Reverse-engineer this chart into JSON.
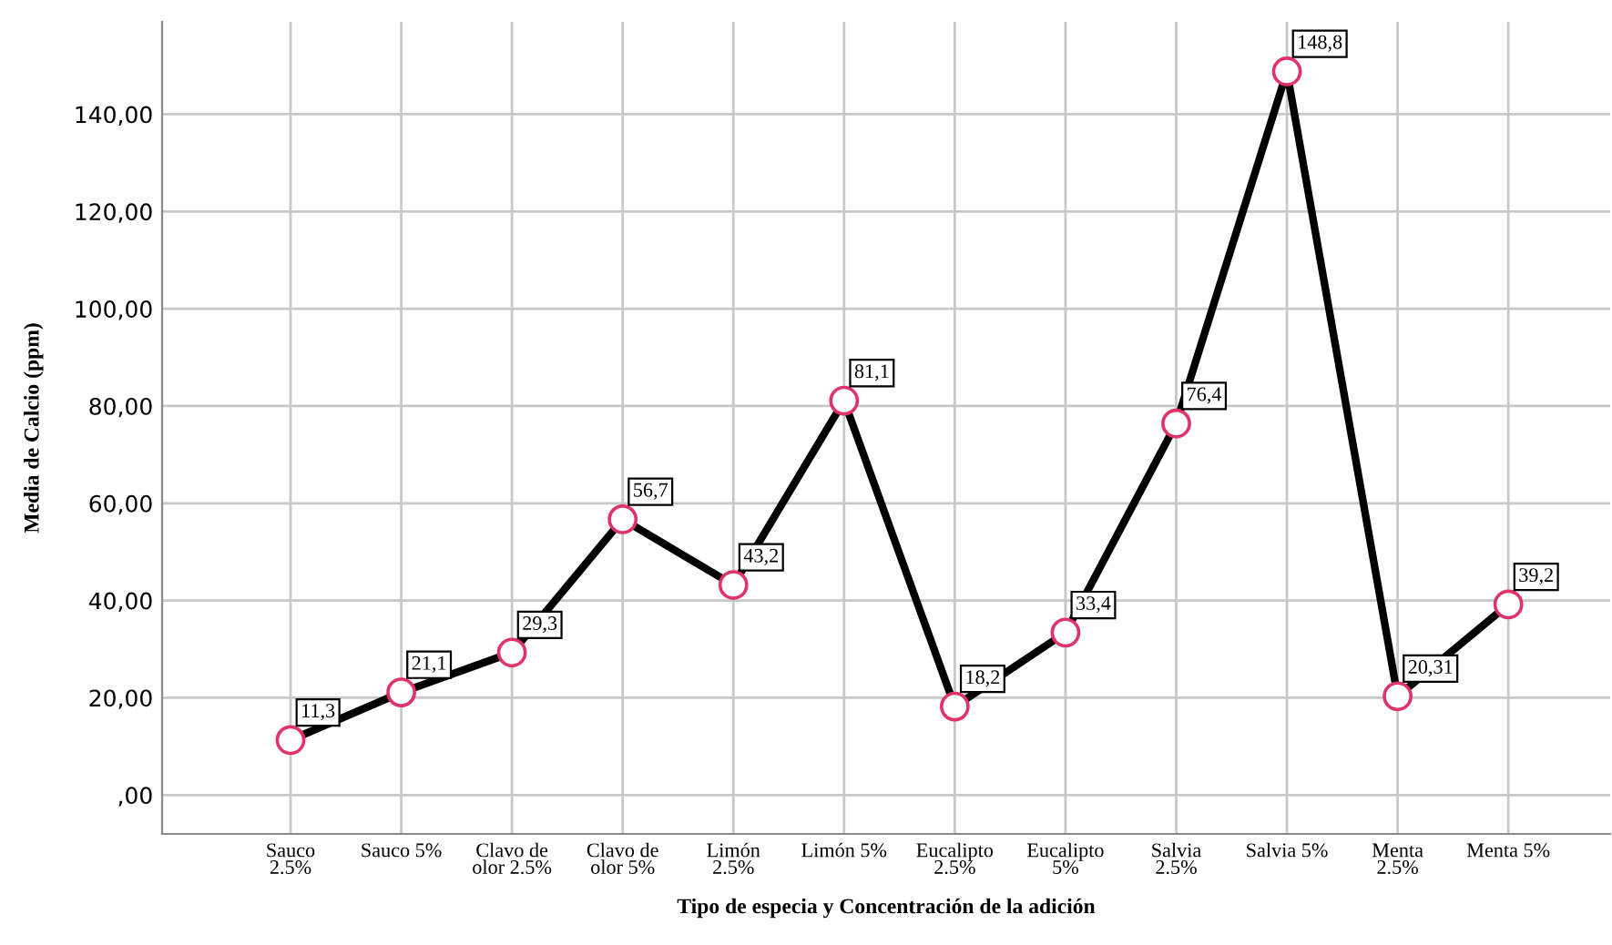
{
  "chart_data": {
    "type": "line",
    "xlabel": "Tipo de especia y Concentración de la adición",
    "ylabel": "Media de Calcio (ppm)",
    "categories": [
      "Sauco\n2.5%",
      "Sauco 5%",
      "Clavo de\nolor 2.5%",
      "Clavo de\nolor 5%",
      "Limón\n2.5%",
      "Limón 5%",
      "Eucalipto\n2.5%",
      "Eucalipto\n5%",
      "Salvia\n2.5%",
      "Salvia 5%",
      "Menta\n2.5%",
      "Menta 5%"
    ],
    "series": [
      {
        "color": "#000000",
        "values": [
          11.3,
          21.1,
          29.3,
          56.7,
          43.2,
          81.1,
          18.2,
          33.4,
          76.4,
          148.8,
          20.31,
          39.2
        ],
        "colors": [
          "#e0336a",
          "#e0336a",
          "#e0336a",
          "#e0336a",
          "#e0336a",
          "#e0336a",
          "#e0336a",
          "#e0336a",
          "#e0336a",
          "#e0336a",
          "#e0336a",
          "#e0336a"
        ],
        "value_labels": [
          "11,3",
          "21,1",
          "29,3",
          "56,7",
          "43,2",
          "81,1",
          "18,2",
          "33,4",
          "76,4",
          "148,8",
          "20,31",
          "39,2"
        ]
      }
    ],
    "ylim": [
      -8,
      159
    ],
    "yticks": [
      {
        "value": 0,
        "label": ",00"
      },
      {
        "value": 20,
        "label": "20,00"
      },
      {
        "value": 40,
        "label": "40,00"
      },
      {
        "value": 60,
        "label": "60,00"
      },
      {
        "value": 80,
        "label": "80,00"
      },
      {
        "value": 100,
        "label": "100,00"
      },
      {
        "value": 120,
        "label": "120,00"
      },
      {
        "value": 140,
        "label": "140,00"
      }
    ],
    "grid": true,
    "marker": "circle",
    "line_style": "solid"
  }
}
